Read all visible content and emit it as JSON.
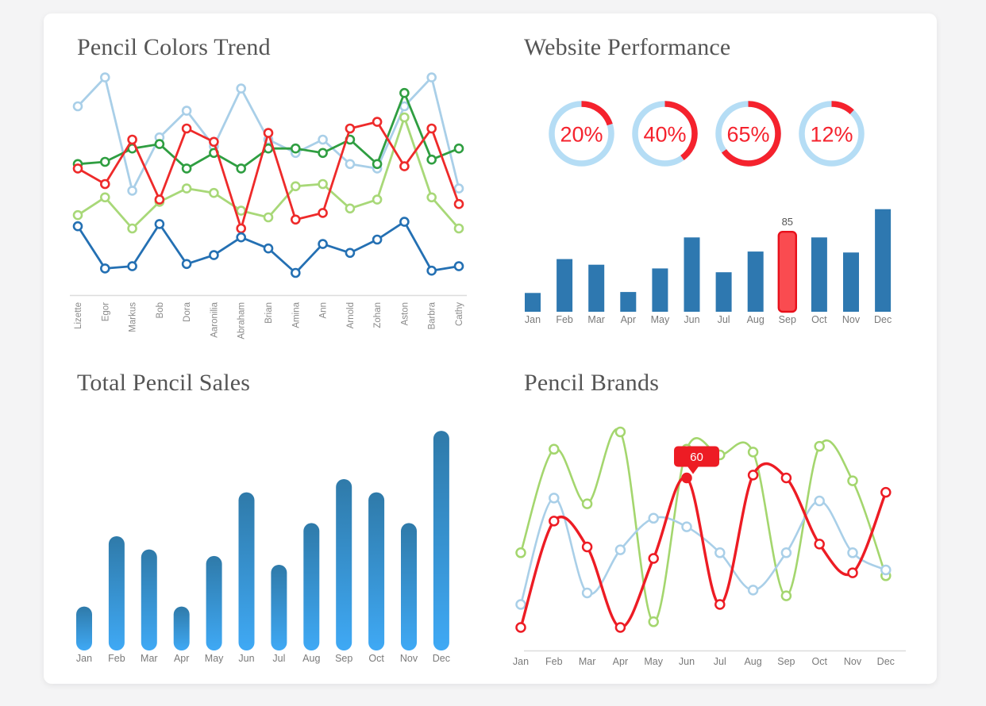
{
  "page": {
    "background": "#f4f4f5",
    "card_background": "#ffffff"
  },
  "style": {
    "title_color": "#555555",
    "axis_line": "#dddddd",
    "tick_label": "#7a7a7a",
    "name_label": "#8a8a8a",
    "bar_value_label": "#555555"
  },
  "panels": {
    "pencil_colors": {
      "title": "Pencil Colors Trend"
    },
    "website_performance": {
      "title": "Website Performance"
    },
    "total_sales": {
      "title": "Total Pencil Sales"
    },
    "pencil_brands": {
      "title": "Pencil Brands"
    }
  },
  "chart_data": [
    {
      "id": "pencil-colors-trend",
      "type": "line",
      "title": "Pencil Colors Trend",
      "categories": [
        "Lizette",
        "Egor",
        "Markus",
        "Bob",
        "Dora",
        "Aaronilia",
        "Abraham",
        "Brian",
        "Amina",
        "Ann",
        "Arnold",
        "Zohan",
        "Aston",
        "Barbra",
        "Cathy"
      ],
      "series": [
        {
          "name": "sky",
          "color": "#a9cfe8",
          "values": [
            85,
            98,
            47,
            71,
            83,
            67,
            93,
            70,
            64,
            70,
            59,
            57,
            85,
            98,
            48
          ]
        },
        {
          "name": "lime",
          "color": "#a8d878",
          "values": [
            36,
            44,
            30,
            42,
            48,
            46,
            38,
            35,
            49,
            50,
            39,
            43,
            80,
            44,
            30
          ]
        },
        {
          "name": "green",
          "color": "#2f9e41",
          "values": [
            59,
            60,
            66,
            68,
            57,
            64,
            57,
            66,
            66,
            64,
            70,
            59,
            91,
            61,
            66
          ]
        },
        {
          "name": "red",
          "color": "#ee2a2a",
          "values": [
            57,
            50,
            70,
            43,
            75,
            69,
            30,
            73,
            34,
            37,
            75,
            78,
            58,
            75,
            41
          ]
        },
        {
          "name": "blue",
          "color": "#2470b3",
          "values": [
            31,
            12,
            13,
            32,
            14,
            18,
            26,
            21,
            10,
            23,
            19,
            25,
            33,
            11,
            13
          ]
        }
      ],
      "ylim": [
        0,
        100
      ],
      "grid": false,
      "legend": "none",
      "marker": "open-circle"
    },
    {
      "id": "website-gauges",
      "type": "donut-gauges",
      "values": [
        20,
        40,
        65,
        12
      ],
      "labels": [
        "20%",
        "40%",
        "65%",
        "12%"
      ],
      "ring_color": "#b5ddf5",
      "arc_color": "#f5222d",
      "value_color": "#f5222d"
    },
    {
      "id": "website-bars",
      "type": "bar",
      "categories": [
        "Jan",
        "Feb",
        "Mar",
        "Apr",
        "May",
        "Jun",
        "Jul",
        "Aug",
        "Sep",
        "Oct",
        "Nov",
        "Dec"
      ],
      "values": [
        20,
        56,
        50,
        21,
        46,
        79,
        42,
        64,
        85,
        79,
        63,
        109
      ],
      "bar_color": "#2e78b0",
      "highlight": {
        "index": 8,
        "label": "85",
        "fill": "#fa4b50",
        "stroke": "#e8101b"
      },
      "ylim": [
        0,
        118
      ],
      "grid": false
    },
    {
      "id": "total-pencil-sales",
      "type": "bar",
      "title": "Total Pencil Sales",
      "categories": [
        "Jan",
        "Feb",
        "Mar",
        "Apr",
        "May",
        "Jun",
        "Jul",
        "Aug",
        "Sep",
        "Oct",
        "Nov",
        "Dec"
      ],
      "values": [
        20,
        52,
        46,
        20,
        43,
        72,
        39,
        58,
        78,
        72,
        58,
        100
      ],
      "bar_gradient_top": "#2f7aa9",
      "bar_gradient_bottom": "#3fa9f5",
      "rounded": true,
      "ylim": [
        0,
        104
      ],
      "grid": false
    },
    {
      "id": "pencil-brands",
      "type": "line",
      "smooth": true,
      "title": "Pencil Brands",
      "categories": [
        "Jan",
        "Feb",
        "Mar",
        "Apr",
        "May",
        "Jun",
        "Jul",
        "Aug",
        "Sep",
        "Oct",
        "Nov",
        "Dec"
      ],
      "series": [
        {
          "name": "green",
          "color": "#a4d66e",
          "values": [
            34,
            70,
            51,
            76,
            10,
            70,
            68,
            69,
            19,
            71,
            59,
            26
          ]
        },
        {
          "name": "blue",
          "color": "#a9cfe8",
          "values": [
            16,
            53,
            20,
            35,
            46,
            43,
            34,
            21,
            34,
            52,
            34,
            28
          ]
        },
        {
          "name": "red",
          "color": "#ed1c24",
          "values": [
            8,
            45,
            36,
            8,
            32,
            60,
            16,
            61,
            60,
            37,
            27,
            55
          ]
        }
      ],
      "tooltip": {
        "series_index": 2,
        "point_index": 5,
        "label": "60",
        "bg": "#ed1c24",
        "text_color": "#ffffff"
      },
      "ylim": [
        0,
        80
      ],
      "grid": false,
      "legend": "none",
      "marker": "open-circle"
    }
  ]
}
